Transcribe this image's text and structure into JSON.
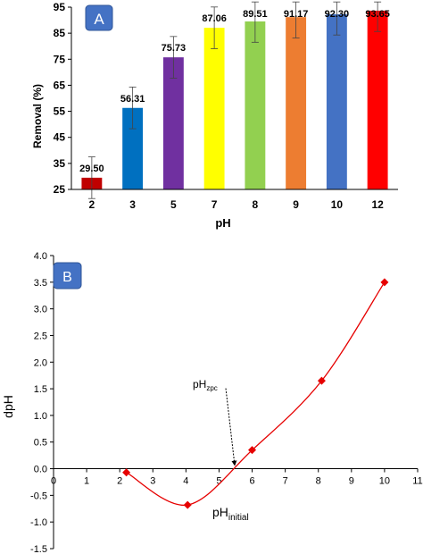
{
  "chart_data": [
    {
      "type": "bar",
      "panel_label": "A",
      "categories": [
        "2",
        "3",
        "5",
        "7",
        "8",
        "9",
        "10",
        "12"
      ],
      "values": [
        29.5,
        56.31,
        75.73,
        87.06,
        89.51,
        91.17,
        92.3,
        93.65
      ],
      "value_labels": [
        "29.50",
        "56.31",
        "75.73",
        "87.06",
        "89.51",
        "91.17",
        "92.30",
        "93.65"
      ],
      "error": [
        8,
        8,
        8,
        8,
        8,
        8,
        8,
        8
      ],
      "bar_colors": [
        "#c00000",
        "#0070c0",
        "#7030a0",
        "#ffff00",
        "#92d050",
        "#ed7d31",
        "#4472c4",
        "#ff0000"
      ],
      "xlabel": "pH",
      "ylabel": "Removal (%)",
      "ylim": [
        25,
        95
      ],
      "yticks": [
        25,
        35,
        45,
        55,
        65,
        75,
        85,
        95
      ],
      "grid": false,
      "legend": "none"
    },
    {
      "type": "line",
      "panel_label": "B",
      "x": [
        2.2,
        4.05,
        6.0,
        8.1,
        10.0
      ],
      "y": [
        -0.07,
        -0.68,
        0.35,
        1.65,
        3.5
      ],
      "marker": "diamond",
      "color": "#e60000",
      "xlim": [
        0,
        11
      ],
      "ylim": [
        -1.5,
        4.0
      ],
      "xticks": [
        "0",
        "1",
        "2",
        "3",
        "4",
        "5",
        "6",
        "7",
        "8",
        "9",
        "10",
        "11"
      ],
      "yticks": [
        "4.0",
        "3.5",
        "3.0",
        "2.5",
        "2.0",
        "1.5",
        "1.0",
        "0.5",
        "0.0",
        "-0.5",
        "-1.0",
        "-1.5"
      ],
      "ylabel": "dpH",
      "xlabel_main": "pH",
      "xlabel_sub": "initial",
      "annotation_main": "pH",
      "annotation_sub": "zpc",
      "annotation_point": [
        5.5,
        0.0
      ],
      "grid": false,
      "legend": "none"
    }
  ]
}
